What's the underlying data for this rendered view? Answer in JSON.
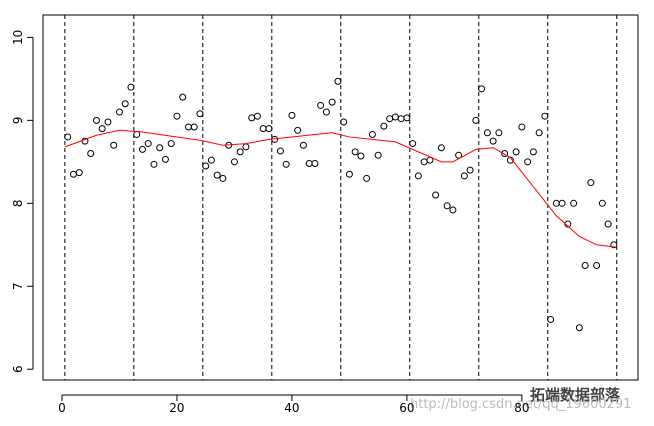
{
  "chart_data": {
    "type": "scatter",
    "x": [
      1,
      2,
      3,
      4,
      5,
      6,
      7,
      8,
      9,
      10,
      11,
      12,
      13,
      14,
      15,
      16,
      17,
      18,
      19,
      20,
      21,
      22,
      23,
      24,
      25,
      26,
      27,
      28,
      29,
      30,
      31,
      32,
      33,
      34,
      35,
      36,
      37,
      38,
      39,
      40,
      41,
      42,
      43,
      44,
      45,
      46,
      47,
      48,
      49,
      50,
      51,
      52,
      53,
      54,
      55,
      56,
      57,
      58,
      59,
      60,
      61,
      62,
      63,
      64,
      65,
      66,
      67,
      68,
      69,
      70,
      71,
      72,
      73,
      74,
      75,
      76,
      77,
      78,
      79,
      80,
      81,
      82,
      83,
      84,
      85,
      86,
      87,
      88,
      89,
      90,
      91,
      92,
      93,
      94,
      95,
      96
    ],
    "values": [
      8.8,
      8.35,
      8.37,
      8.75,
      8.6,
      9.0,
      8.9,
      8.98,
      8.7,
      9.1,
      9.2,
      9.4,
      8.83,
      8.65,
      8.72,
      8.47,
      8.67,
      8.53,
      8.72,
      9.05,
      9.28,
      8.92,
      8.92,
      9.08,
      8.45,
      8.52,
      8.34,
      8.3,
      8.7,
      8.5,
      8.62,
      8.68,
      9.03,
      9.05,
      8.9,
      8.9,
      8.77,
      8.63,
      8.47,
      9.06,
      8.88,
      8.7,
      8.48,
      8.48,
      9.18,
      9.1,
      9.22,
      9.47,
      8.98,
      8.35,
      8.62,
      8.57,
      8.3,
      8.83,
      8.58,
      8.93,
      9.02,
      9.04,
      9.02,
      9.03,
      8.72,
      8.33,
      8.5,
      8.52,
      8.1,
      8.67,
      7.97,
      7.92,
      8.58,
      8.33,
      8.4,
      9.0,
      9.38,
      8.85,
      8.75,
      8.85,
      8.6,
      8.52,
      8.62,
      8.92,
      8.5,
      8.62,
      8.85,
      9.05,
      6.6,
      8.0,
      8.0,
      7.75,
      8.0,
      6.5,
      7.25,
      8.25,
      7.25,
      8.0,
      7.75,
      7.5
    ],
    "smooth": {
      "color": "#ff0000",
      "x": [
        0.5,
        6,
        10,
        14,
        20,
        24,
        28,
        32,
        36,
        40,
        44,
        47,
        50,
        54,
        58,
        62,
        66,
        68,
        72,
        75,
        78,
        82,
        86,
        90,
        93,
        96.5
      ],
      "values": [
        8.68,
        8.82,
        8.88,
        8.86,
        8.8,
        8.76,
        8.7,
        8.72,
        8.77,
        8.8,
        8.83,
        8.85,
        8.8,
        8.77,
        8.74,
        8.62,
        8.5,
        8.5,
        8.65,
        8.67,
        8.55,
        8.2,
        7.85,
        7.6,
        7.5,
        7.47
      ]
    },
    "vlines": [
      0.5,
      12.5,
      24.5,
      36.5,
      48.5,
      60.5,
      72.5,
      84.5,
      96.5
    ],
    "xlim": [
      -3.3,
      100.2
    ],
    "ylim": [
      5.87,
      10.27
    ],
    "xticks": [
      0,
      20,
      40,
      60,
      80
    ],
    "yticks": [
      6,
      7,
      8,
      9,
      10
    ],
    "watermark": "拓端数据部落",
    "watermark_url": "http://blog.csdn.net/qq_19600291"
  }
}
